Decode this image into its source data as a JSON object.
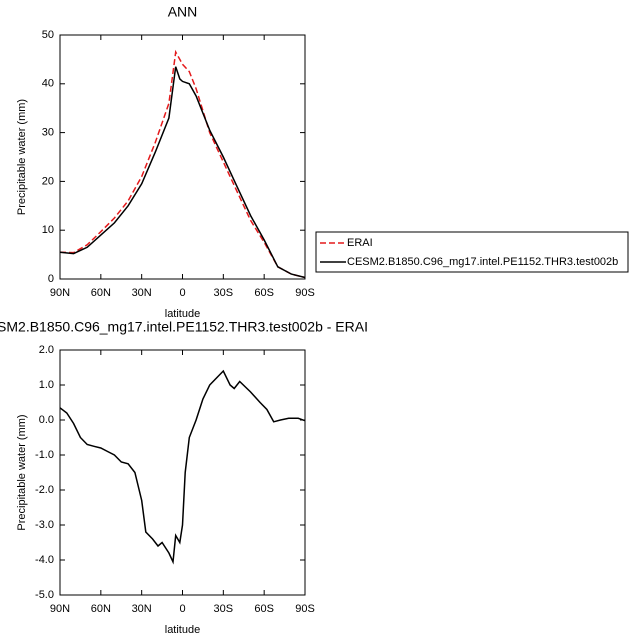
{
  "chart_data": [
    {
      "type": "line",
      "title": "ANN",
      "x_label": "latitude",
      "y_label": "Precipitable water (mm)",
      "x": [
        90,
        80,
        70,
        60,
        50,
        40,
        30,
        20,
        10,
        5,
        2,
        0,
        -5,
        -10,
        -20,
        -30,
        -40,
        -50,
        -60,
        -70,
        -80,
        -90
      ],
      "series": [
        {
          "name": "ERAI",
          "color": "#e41a1c",
          "dash": true,
          "values": [
            5.5,
            5.4,
            7,
            9.7,
            12.5,
            16,
            21,
            28,
            36,
            46.5,
            45,
            44,
            42.5,
            39,
            30,
            24,
            18,
            12,
            7.5,
            2.5,
            1,
            0.3
          ]
        },
        {
          "name": "CESM2.B1850.C96_mg17.intel.PE1152.THR3.test002b",
          "color": "#000000",
          "dash": false,
          "values": [
            5.5,
            5.2,
            6.5,
            9,
            11.5,
            15,
            19.5,
            26,
            33,
            43.5,
            41,
            40.5,
            40,
            37.5,
            30.5,
            25,
            19,
            13,
            8,
            2.5,
            1,
            0.3
          ]
        }
      ],
      "xlim": [
        90,
        -90
      ],
      "xticks": [
        {
          "value": 90,
          "label": "90N"
        },
        {
          "value": 60,
          "label": "60N"
        },
        {
          "value": 30,
          "label": "30N"
        },
        0,
        {
          "value": -30,
          "label": "30S"
        },
        {
          "value": -60,
          "label": "60S"
        },
        {
          "value": -90,
          "label": "90S"
        }
      ],
      "ylim": [
        0,
        50
      ],
      "yticks": [
        0,
        10,
        20,
        30,
        40,
        50
      ]
    },
    {
      "type": "line",
      "title": "SM2.B1850.C96_mg17.intel.PE1152.THR3.test002b - ERAI",
      "x_label": "latitude",
      "y_label": "Precipitable water (mm)",
      "x": [
        90,
        85,
        80,
        75,
        70,
        65,
        60,
        55,
        50,
        45,
        40,
        35,
        30,
        27,
        22,
        18,
        15,
        10,
        7,
        5,
        2,
        0,
        -2,
        -5,
        -10,
        -15,
        -20,
        -25,
        -30,
        -35,
        -38,
        -42,
        -50,
        -57,
        -62,
        -67,
        -72,
        -78,
        -85,
        -90
      ],
      "series": [
        {
          "color": "#000000",
          "dash": false,
          "values": [
            0.35,
            0.2,
            -0.1,
            -0.5,
            -0.7,
            -0.75,
            -0.8,
            -0.9,
            -1.0,
            -1.2,
            -1.25,
            -1.5,
            -2.3,
            -3.2,
            -3.4,
            -3.6,
            -3.5,
            -3.8,
            -4.05,
            -3.3,
            -3.5,
            -3.0,
            -1.5,
            -0.5,
            0,
            0.6,
            1.0,
            1.2,
            1.4,
            1.0,
            0.9,
            1.1,
            0.8,
            0.5,
            0.3,
            -0.05,
            0.0,
            0.05,
            0.05,
            -0.02
          ]
        }
      ],
      "xlim": [
        90,
        -90
      ],
      "xticks": [
        {
          "value": 90,
          "label": "90N"
        },
        {
          "value": 60,
          "label": "60N"
        },
        {
          "value": 30,
          "label": "30N"
        },
        0,
        {
          "value": -30,
          "label": "30S"
        },
        {
          "value": -60,
          "label": "60S"
        },
        {
          "value": -90,
          "label": "90S"
        }
      ],
      "ylim": [
        -5,
        2
      ],
      "yticks": [
        {
          "value": -5,
          "label": "-5.0"
        },
        {
          "value": -4,
          "label": "-4.0"
        },
        {
          "value": -3,
          "label": "-3.0"
        },
        {
          "value": -2,
          "label": "-2.0"
        },
        {
          "value": -1,
          "label": "-1.0"
        },
        {
          "value": 0,
          "label": "0.0"
        },
        {
          "value": 1,
          "label": "1.0"
        },
        {
          "value": 2,
          "label": "2.0"
        }
      ]
    }
  ]
}
